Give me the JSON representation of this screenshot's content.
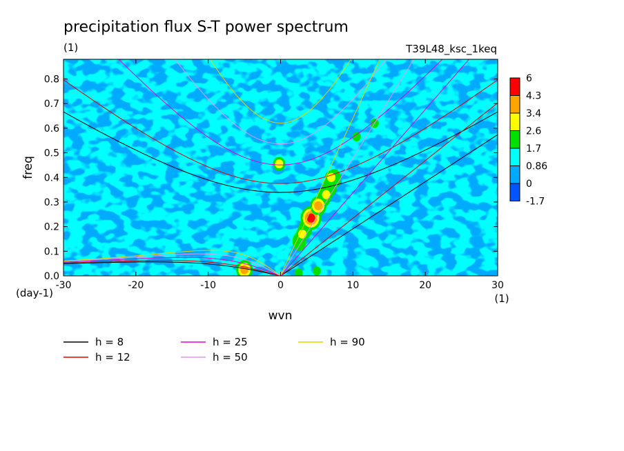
{
  "chart_data": {
    "type": "heatmap",
    "title": "precipitation flux S-T power spectrum",
    "units_label": "(1)",
    "run_label": "T39L48_ksc_1keq",
    "xlabel": "wvn",
    "ylabel": "freq",
    "x_unit_label": "(1)",
    "y_unit_label": "(day-1)",
    "xlim": [
      -30,
      30
    ],
    "ylim": [
      0,
      0.88
    ],
    "x_ticks": [
      -30,
      -20,
      -10,
      0,
      10,
      20,
      30
    ],
    "x_tick_labels": [
      "-30",
      "-20",
      "-10",
      "0",
      "10",
      "20",
      "30"
    ],
    "y_ticks": [
      0,
      0.1,
      0.2,
      0.3,
      0.4,
      0.5,
      0.6,
      0.7,
      0.8
    ],
    "y_tick_labels": [
      "0.0",
      "0.1",
      "0.2",
      "0.3",
      "0.4",
      "0.5",
      "0.6",
      "0.7",
      "0.8"
    ],
    "colorbar": {
      "levels": [
        "6",
        "4.3",
        "3.4",
        "2.6",
        "1.7",
        "0.86",
        "0",
        "-1.7"
      ],
      "colors": [
        "#ff0000",
        "#ffa500",
        "#ffff00",
        "#00e000",
        "#00ffff",
        "#00aaff",
        "#0055ff"
      ]
    },
    "field": {
      "background_level_color": "#00aaff",
      "patches": [
        {
          "x": 4.2,
          "y": 0.235,
          "level": "red"
        },
        {
          "x": 5.2,
          "y": 0.285,
          "level": "orange"
        },
        {
          "x": 6.3,
          "y": 0.33,
          "level": "yellow"
        },
        {
          "x": 3.0,
          "y": 0.17,
          "level": "yellow"
        },
        {
          "x": 7.0,
          "y": 0.4,
          "level": "yellow"
        },
        {
          "x": -0.2,
          "y": 0.455,
          "level": "yellow"
        },
        {
          "x": -5.0,
          "y": 0.025,
          "level": "orange"
        },
        {
          "x": 10.5,
          "y": 0.565,
          "level": "green"
        },
        {
          "x": 13.0,
          "y": 0.62,
          "level": "green"
        },
        {
          "x": 2.5,
          "y": 0.012,
          "level": "green"
        },
        {
          "x": 5.0,
          "y": 0.02,
          "level": "green"
        }
      ]
    },
    "series": [
      {
        "name": "h = 8",
        "equivalent_depth": 8,
        "color": "#000000"
      },
      {
        "name": "h = 12",
        "equivalent_depth": 12,
        "color": "#dd0000"
      },
      {
        "name": "h = 25",
        "equivalent_depth": 25,
        "color": "#dd00dd"
      },
      {
        "name": "h = 50",
        "equivalent_depth": 50,
        "color": "#dd99ee"
      },
      {
        "name": "h = 90",
        "equivalent_depth": 90,
        "color": "#e8d000"
      }
    ],
    "legend": {
      "placement": "bottom-left"
    }
  }
}
